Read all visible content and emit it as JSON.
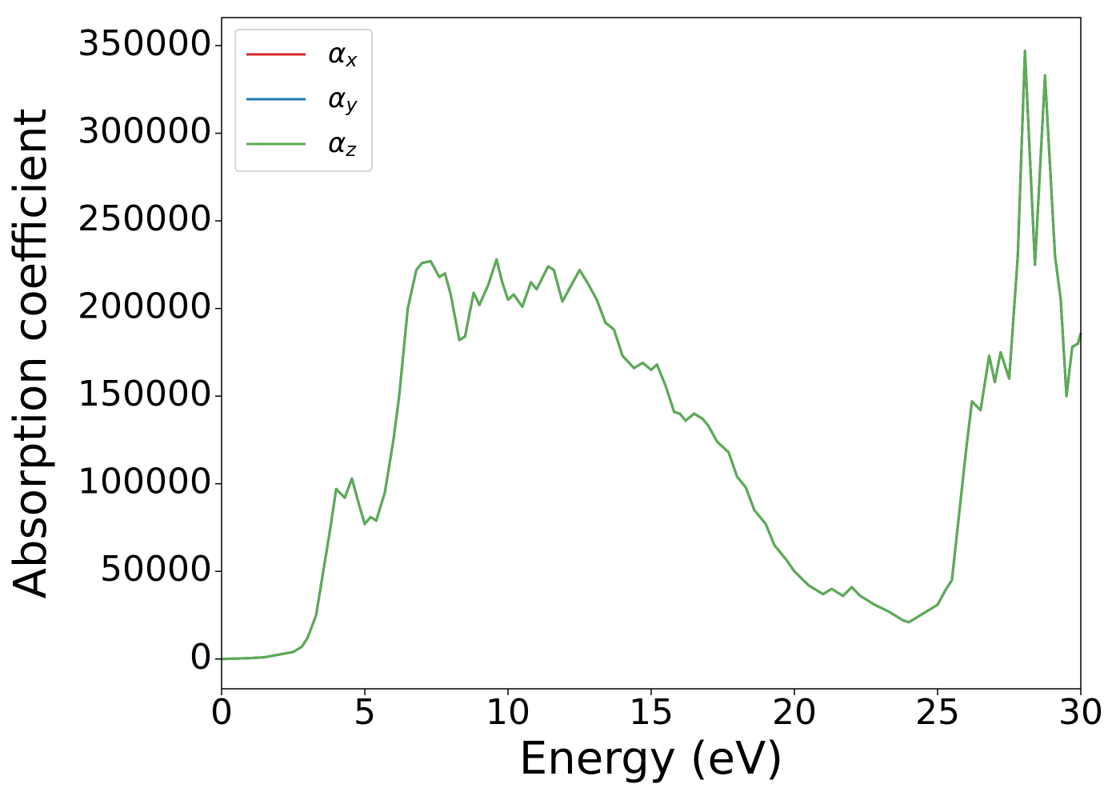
{
  "chart_data": {
    "type": "line",
    "xlabel": "Energy (eV)",
    "ylabel": "Absorption coefficient",
    "xlim": [
      0,
      30
    ],
    "xticks": [
      0,
      5,
      10,
      15,
      20,
      25,
      30
    ],
    "ylim": [
      -17000,
      366000
    ],
    "yticks": [
      0,
      50000,
      100000,
      150000,
      200000,
      250000,
      300000,
      350000
    ],
    "legend": "upper left",
    "x": [
      0,
      1,
      1.5,
      2,
      2.5,
      2.8,
      3,
      3.3,
      3.6,
      3.8,
      4.0,
      4.3,
      4.55,
      4.8,
      5.0,
      5.2,
      5.4,
      5.7,
      6.0,
      6.2,
      6.5,
      6.8,
      7.0,
      7.3,
      7.6,
      7.8,
      8.0,
      8.3,
      8.5,
      8.8,
      9.0,
      9.3,
      9.6,
      9.8,
      10.0,
      10.2,
      10.5,
      10.8,
      11.0,
      11.4,
      11.6,
      11.9,
      12.1,
      12.5,
      12.8,
      13.1,
      13.4,
      13.7,
      14.0,
      14.4,
      14.7,
      15.0,
      15.2,
      15.5,
      15.8,
      16.0,
      16.2,
      16.5,
      16.8,
      17.0,
      17.3,
      17.7,
      18.0,
      18.3,
      18.6,
      19.0,
      19.3,
      19.7,
      20.0,
      20.5,
      21.0,
      21.3,
      21.7,
      22.0,
      22.3,
      22.8,
      23.3,
      23.8,
      24.0,
      24.5,
      25.0,
      25.3,
      25.5,
      25.7,
      26.0,
      26.2,
      26.5,
      26.8,
      27.0,
      27.2,
      27.5,
      27.8,
      28.05,
      28.4,
      28.75,
      29.1,
      29.3,
      29.5,
      29.7,
      29.9,
      30.0
    ],
    "series": [
      {
        "name": "αx",
        "color": "#d62728",
        "values": [
          0,
          500,
          1000,
          2500,
          4000,
          7000,
          12000,
          25000,
          55000,
          75000,
          97000,
          92000,
          103000,
          88000,
          77000,
          81000,
          79000,
          95000,
          125000,
          150000,
          200000,
          222000,
          226000,
          227000,
          218000,
          220000,
          208000,
          182000,
          184000,
          209000,
          202000,
          213000,
          228000,
          215000,
          205000,
          208000,
          201000,
          215000,
          211000,
          224000,
          222000,
          204000,
          210000,
          222000,
          214000,
          205000,
          192000,
          188000,
          173000,
          166000,
          169000,
          165000,
          168000,
          156000,
          141000,
          140000,
          136000,
          140000,
          137000,
          133000,
          124000,
          118000,
          104000,
          98000,
          85000,
          77000,
          65000,
          57000,
          50000,
          42000,
          37000,
          40000,
          36000,
          41000,
          36000,
          31000,
          27000,
          22000,
          21000,
          26000,
          31000,
          40000,
          45000,
          75000,
          120000,
          147000,
          142000,
          173000,
          158000,
          175000,
          160000,
          230000,
          347000,
          225000,
          333000,
          230000,
          205000,
          150000,
          178000,
          180000,
          186000
        ]
      },
      {
        "name": "αy",
        "color": "#1f77b4",
        "values": [
          0,
          500,
          1000,
          2500,
          4000,
          7000,
          12000,
          25000,
          55000,
          75000,
          97000,
          92000,
          103000,
          88000,
          77000,
          81000,
          79000,
          95000,
          125000,
          150000,
          200000,
          222000,
          226000,
          227000,
          218000,
          220000,
          208000,
          182000,
          184000,
          209000,
          202000,
          213000,
          228000,
          215000,
          205000,
          208000,
          201000,
          215000,
          211000,
          224000,
          222000,
          204000,
          210000,
          222000,
          214000,
          205000,
          192000,
          188000,
          173000,
          166000,
          169000,
          165000,
          168000,
          156000,
          141000,
          140000,
          136000,
          140000,
          137000,
          133000,
          124000,
          118000,
          104000,
          98000,
          85000,
          77000,
          65000,
          57000,
          50000,
          42000,
          37000,
          40000,
          36000,
          41000,
          36000,
          31000,
          27000,
          22000,
          21000,
          26000,
          31000,
          40000,
          45000,
          75000,
          120000,
          147000,
          142000,
          173000,
          158000,
          175000,
          160000,
          230000,
          347000,
          225000,
          333000,
          230000,
          205000,
          150000,
          178000,
          180000,
          186000
        ]
      },
      {
        "name": "αz",
        "color": "#5aad52",
        "values": [
          0,
          500,
          1000,
          2500,
          4000,
          7000,
          12000,
          25000,
          55000,
          75000,
          97000,
          92000,
          103000,
          88000,
          77000,
          81000,
          79000,
          95000,
          125000,
          150000,
          200000,
          222000,
          226000,
          227000,
          218000,
          220000,
          208000,
          182000,
          184000,
          209000,
          202000,
          213000,
          228000,
          215000,
          205000,
          208000,
          201000,
          215000,
          211000,
          224000,
          222000,
          204000,
          210000,
          222000,
          214000,
          205000,
          192000,
          188000,
          173000,
          166000,
          169000,
          165000,
          168000,
          156000,
          141000,
          140000,
          136000,
          140000,
          137000,
          133000,
          124000,
          118000,
          104000,
          98000,
          85000,
          77000,
          65000,
          57000,
          50000,
          42000,
          37000,
          40000,
          36000,
          41000,
          36000,
          31000,
          27000,
          22000,
          21000,
          26000,
          31000,
          40000,
          45000,
          75000,
          120000,
          147000,
          142000,
          173000,
          158000,
          175000,
          160000,
          230000,
          347000,
          225000,
          333000,
          230000,
          205000,
          150000,
          178000,
          180000,
          186000
        ]
      }
    ]
  }
}
